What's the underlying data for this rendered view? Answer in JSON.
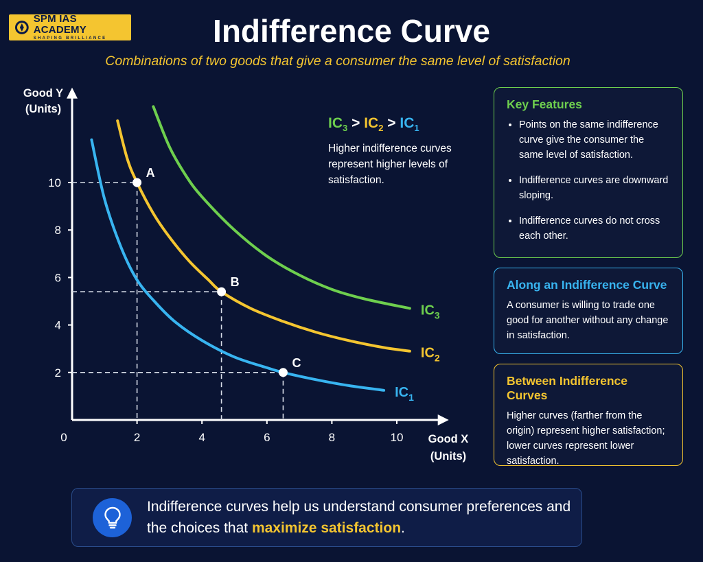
{
  "logo": {
    "name": "SPM IAS ACADEMY",
    "tagline": "SHAPING BRILLIANCE"
  },
  "header": {
    "title": "Indifference Curve",
    "subtitle": "Combinations of two goods that give a consumer the same level of satisfaction"
  },
  "legend": {
    "ic3": "IC",
    "ic3_sub": "3",
    "gt1": ">",
    "ic2": "IC",
    "ic2_sub": "2",
    "gt2": ">",
    "ic1": "IC",
    "ic1_sub": "1",
    "note": "Higher indifference curves represent higher levels of satisfaction."
  },
  "panels": {
    "key_features": {
      "title": "Key Features",
      "items": [
        "Points on the same indifference curve give the consumer the same level of satisfaction.",
        "Indifference curves are downward sloping.",
        "Indifference curves do not cross each other."
      ]
    },
    "along": {
      "title": "Along an Indifference Curve",
      "text": "A consumer is willing to trade one good for another without any change in satisfaction."
    },
    "between": {
      "title": "Between Indifference Curves",
      "text": "Higher curves (farther from the origin) represent higher satisfaction; lower curves represent lower satisfaction."
    }
  },
  "bottom": {
    "text_before": "Indifference curves help us understand consumer preferences and the choices that ",
    "highlight": "maximize satisfaction",
    "text_after": "."
  },
  "colors": {
    "ic1": "#38b4f0",
    "ic2": "#f4c530",
    "ic3": "#6ecf4e",
    "background": "#0a1433"
  },
  "icons": {
    "bottom": "lightbulb-icon",
    "logo": "academy-emblem-icon"
  },
  "chart_data": {
    "type": "line",
    "title": "",
    "xlabel": [
      "Good X",
      "(Units)"
    ],
    "ylabel": [
      "Good Y",
      "(Units)"
    ],
    "xlim": [
      0,
      11.6
    ],
    "ylim": [
      0,
      14
    ],
    "x_ticks": [
      "0",
      "2",
      "4",
      "6",
      "8",
      "10"
    ],
    "x_tick_values": [
      0,
      2,
      4,
      6,
      8,
      10
    ],
    "y_ticks": [
      "2",
      "4",
      "6",
      "8",
      "10"
    ],
    "y_tick_values": [
      2,
      4,
      6,
      8,
      10
    ],
    "grid": false,
    "series": [
      {
        "name": "IC1",
        "name_base": "IC",
        "name_sub": "1",
        "color": "#38b4f0",
        "x": [
          0.6,
          1.0,
          1.5,
          2.0,
          2.6,
          3.2,
          4.0,
          5.0,
          6.0,
          6.5,
          7.5,
          8.5,
          9.6
        ],
        "y": [
          11.8,
          9.3,
          7.3,
          5.9,
          4.9,
          4.1,
          3.35,
          2.65,
          2.2,
          2.0,
          1.7,
          1.45,
          1.25
        ]
      },
      {
        "name": "IC2",
        "name_base": "IC",
        "name_sub": "2",
        "color": "#f4c530",
        "x": [
          1.4,
          1.7,
          2.0,
          2.5,
          3.0,
          3.6,
          4.2,
          4.6,
          5.5,
          6.5,
          7.5,
          8.5,
          9.6,
          10.4
        ],
        "y": [
          12.6,
          11.0,
          10.0,
          8.7,
          7.7,
          6.7,
          5.9,
          5.4,
          4.7,
          4.15,
          3.7,
          3.35,
          3.05,
          2.9
        ]
      },
      {
        "name": "IC3",
        "name_base": "IC",
        "name_sub": "3",
        "color": "#6ecf4e",
        "x": [
          2.5,
          3.0,
          3.5,
          4.0,
          5.0,
          6.0,
          7.0,
          8.0,
          9.0,
          10.4
        ],
        "y": [
          13.2,
          11.5,
          10.3,
          9.4,
          8.0,
          6.9,
          6.1,
          5.5,
          5.1,
          4.7
        ]
      }
    ],
    "points": [
      {
        "label": "A",
        "x": 2.0,
        "y": 10.0
      },
      {
        "label": "B",
        "x": 4.6,
        "y": 5.4
      },
      {
        "label": "C",
        "x": 6.5,
        "y": 2.0
      }
    ]
  }
}
